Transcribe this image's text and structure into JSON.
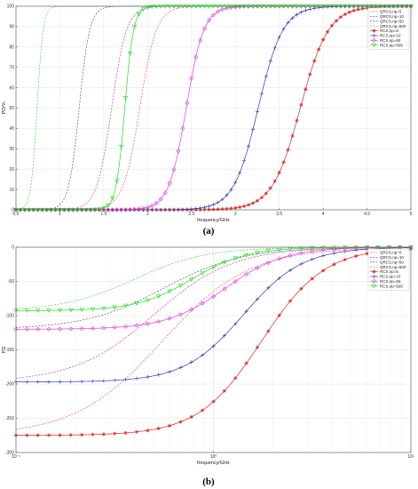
{
  "chart_data": [
    {
      "type": "line",
      "panel_label": "(a)",
      "xlabel": "frequency/GHz",
      "ylabel": "PD/%",
      "xscale": "linear",
      "xlim": [
        0.5,
        5
      ],
      "ylim": [
        0,
        100
      ],
      "xticks": [
        0.5,
        1,
        1.5,
        2,
        2.5,
        3,
        3.5,
        4,
        4.5,
        5
      ],
      "xticklabels": [
        "0.5",
        "1",
        "1.5",
        "2",
        "2.5",
        "3",
        "3.5",
        "4",
        "4.5",
        "5"
      ],
      "yticks": [
        0,
        10,
        20,
        30,
        40,
        50,
        60,
        70,
        80,
        90,
        100
      ],
      "yticklabels": [
        "0",
        "10",
        "20",
        "30",
        "40",
        "50",
        "60",
        "70",
        "80",
        "90",
        "100"
      ],
      "grid": true,
      "legend_position": "top-right",
      "series": [
        {
          "name": "QRCS,np=5",
          "color": "#ff3b3b",
          "style": "dashed",
          "marker": "none",
          "f50": 1.91,
          "width": 0.095
        },
        {
          "name": "QRCS,np=10",
          "color": "#b21fb2",
          "style": "dashed",
          "marker": "none",
          "f50": 1.59,
          "width": 0.085
        },
        {
          "name": "QRCS,np=50",
          "color": "#444444",
          "style": "dashed",
          "marker": "none",
          "f50": 1.22,
          "width": 0.06
        },
        {
          "name": "QRCS,np=500",
          "color": "#33cc33",
          "style": "dashed",
          "marker": "none",
          "f50": 0.74,
          "width": 0.035
        },
        {
          "name": "RCS,np=5",
          "color": "#e52222",
          "style": "solid",
          "marker": "star",
          "f50": 3.74,
          "width": 0.16
        },
        {
          "name": "RCS,np=10",
          "color": "#3333bb",
          "style": "solid",
          "marker": "plus",
          "f50": 3.26,
          "width": 0.14
        },
        {
          "name": "RCS,np=50",
          "color": "#e23be2",
          "style": "solid",
          "marker": "diamond",
          "f50": 2.44,
          "width": 0.1
        },
        {
          "name": "RCS,np=500",
          "color": "#22dd22",
          "style": "solid",
          "marker": "triangle",
          "f50": 1.74,
          "width": 0.05
        }
      ]
    },
    {
      "type": "line",
      "panel_label": "(b)",
      "xlabel": "frequency/GHz",
      "ylabel": "PD",
      "xscale": "log",
      "xlim": [
        0.1,
        10
      ],
      "ylim": [
        -300,
        0
      ],
      "xticks": [
        0.1,
        1,
        10
      ],
      "xticklabels": [
        "10⁻¹",
        "10⁰",
        "10¹"
      ],
      "yticks": [
        -300,
        -250,
        -200,
        -150,
        -100,
        -50,
        0
      ],
      "yticklabels": [
        "-300",
        "-250",
        "-200",
        "-150",
        "-100",
        "-50",
        "0"
      ],
      "grid": true,
      "legend_position": "top-right",
      "series": [
        {
          "name": "QRCS,np=5",
          "color": "#ff3b3b",
          "style": "dashed",
          "marker": "none",
          "floor": -275,
          "f50": 0.55,
          "width": 0.22
        },
        {
          "name": "QRCS,np=10",
          "color": "#b21fb2",
          "style": "dashed",
          "marker": "none",
          "floor": -197,
          "f50": 0.5,
          "width": 0.2
        },
        {
          "name": "QRCS,np=50",
          "color": "#444444",
          "style": "dashed",
          "marker": "none",
          "floor": -120,
          "f50": 0.56,
          "width": 0.2
        },
        {
          "name": "QRCS,np=500",
          "color": "#33cc33",
          "style": "dashed",
          "marker": "none",
          "floor": -93,
          "f50": 0.4,
          "width": 0.18
        },
        {
          "name": "RCS,np=5",
          "color": "#e52222",
          "style": "solid",
          "marker": "star",
          "floor": -275,
          "f50": 1.75,
          "width": 0.16
        },
        {
          "name": "RCS,np=10",
          "color": "#3333bb",
          "style": "solid",
          "marker": "plus",
          "floor": -197,
          "f50": 1.42,
          "width": 0.15
        },
        {
          "name": "RCS,np=50",
          "color": "#e23be2",
          "style": "solid",
          "marker": "diamond",
          "floor": -120,
          "f50": 1.15,
          "width": 0.15
        },
        {
          "name": "RCS,np=500",
          "color": "#22dd22",
          "style": "solid",
          "marker": "triangle",
          "floor": -93,
          "f50": 0.78,
          "width": 0.14
        }
      ]
    }
  ]
}
